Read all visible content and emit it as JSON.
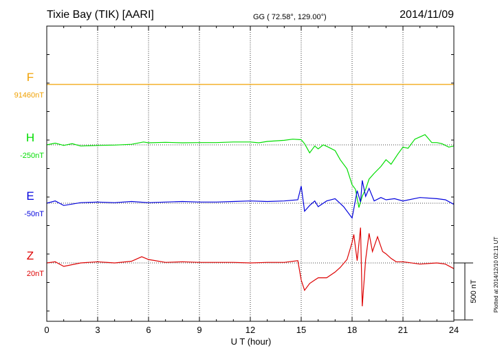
{
  "header": {
    "station": "Tixie Bay (TIK)  [AARI]",
    "coords": "GG ( 72.58°, 129.00°)",
    "date": "2014/11/09"
  },
  "plotted_note": "Plotted at 2014/12/10 02:11  UT",
  "chart_data": {
    "type": "line",
    "xlabel": "U T (hour)",
    "xlim": [
      0,
      24
    ],
    "x_ticks": [
      "0",
      "3",
      "6",
      "9",
      "12",
      "15",
      "18",
      "21",
      "24"
    ],
    "grid": true,
    "scale_bar_label": "500 nT",
    "scale_bar_nt": 500,
    "series": [
      {
        "name": "F",
        "baseline_label": "91460nT",
        "baseline": 91460,
        "color": "#f0a000",
        "x": [
          0,
          4,
          8,
          12,
          16,
          20,
          24
        ],
        "y": [
          91460,
          91460,
          91460,
          91460,
          91460,
          91460,
          91460
        ]
      },
      {
        "name": "H",
        "baseline_label": "-250nT",
        "baseline": -250,
        "color": "#00dd00",
        "x": [
          0,
          0.5,
          1,
          1.5,
          2,
          3,
          4,
          5,
          5.7,
          6,
          7,
          8,
          9,
          10,
          11,
          12,
          12.5,
          13,
          14,
          14.5,
          15,
          15.2,
          15.5,
          15.8,
          16,
          16.3,
          16.6,
          17,
          17.3,
          17.7,
          18,
          18.2,
          18.4,
          18.6,
          18.8,
          19,
          19.3,
          19.7,
          20,
          20.3,
          20.7,
          21,
          21.3,
          21.7,
          22,
          22.3,
          22.7,
          23,
          23.3,
          23.7,
          24
        ],
        "y": [
          -250,
          -235,
          -255,
          -240,
          -260,
          -255,
          -252,
          -245,
          -225,
          -232,
          -228,
          -232,
          -230,
          -230,
          -225,
          -225,
          -232,
          -220,
          -210,
          -200,
          -205,
          -240,
          -320,
          -260,
          -285,
          -250,
          -270,
          -300,
          -380,
          -460,
          -600,
          -640,
          -800,
          -700,
          -640,
          -550,
          -500,
          -440,
          -380,
          -420,
          -330,
          -270,
          -280,
          -200,
          -180,
          -160,
          -230,
          -230,
          -240,
          -270,
          -260
        ]
      },
      {
        "name": "E",
        "baseline_label": "-50nT",
        "baseline": -50,
        "color": "#0000dd",
        "x": [
          0,
          0.5,
          1,
          2,
          3,
          4,
          5,
          6,
          7,
          8,
          9,
          10,
          11,
          12,
          13,
          14,
          14.8,
          15,
          15.2,
          15.5,
          15.8,
          16,
          16.5,
          17,
          17.5,
          18,
          18.1,
          18.3,
          18.5,
          18.6,
          18.8,
          19,
          19.3,
          19.7,
          20,
          20.5,
          21,
          22,
          23,
          23.5,
          24
        ],
        "y": [
          -50,
          -30,
          -70,
          -45,
          -40,
          -45,
          -35,
          -45,
          -40,
          -35,
          -40,
          -40,
          -35,
          -30,
          -35,
          -30,
          -20,
          100,
          -120,
          -70,
          -30,
          -80,
          -30,
          -10,
          -80,
          -180,
          -100,
          60,
          -40,
          150,
          10,
          80,
          -30,
          0,
          -20,
          -10,
          -30,
          0,
          -10,
          -20,
          -60
        ]
      },
      {
        "name": "Z",
        "baseline_label": "20nT",
        "baseline": 20,
        "color": "#dd0000",
        "x": [
          0,
          0.5,
          1,
          2,
          3,
          4,
          5,
          5.6,
          6,
          7,
          8,
          9,
          10,
          11,
          12,
          13,
          14,
          14.8,
          15,
          15.2,
          15.5,
          15.8,
          16,
          16.5,
          17,
          17.3,
          17.7,
          18,
          18.1,
          18.3,
          18.5,
          18.6,
          18.8,
          19,
          19.2,
          19.5,
          19.8,
          20,
          20.3,
          20.6,
          21,
          22,
          23,
          23.5,
          24
        ],
        "y": [
          20,
          30,
          -10,
          20,
          30,
          20,
          35,
          75,
          50,
          25,
          30,
          25,
          25,
          25,
          20,
          25,
          25,
          40,
          -130,
          -220,
          -160,
          -130,
          -110,
          -110,
          -60,
          -20,
          50,
          200,
          270,
          40,
          330,
          -360,
          50,
          280,
          120,
          250,
          120,
          100,
          60,
          30,
          30,
          10,
          20,
          10,
          -30
        ]
      }
    ]
  }
}
